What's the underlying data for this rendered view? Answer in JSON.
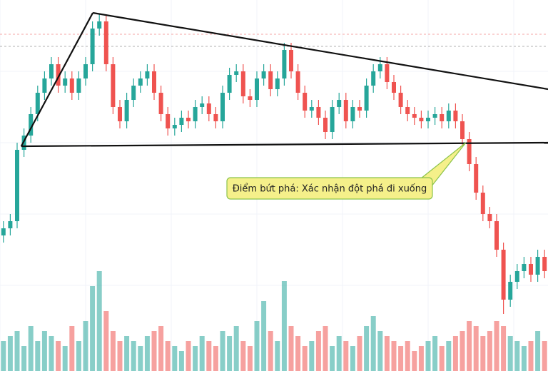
{
  "chart_data": {
    "type": "candlestick",
    "up_color": "#26a69a",
    "down_color": "#ef5350",
    "xlim": [
      -0.5,
      79.5
    ],
    "ylim": [
      0,
      104
    ],
    "volume_lim": [
      0,
      100
    ],
    "open": [
      38,
      40,
      42,
      62,
      66,
      72,
      78,
      82,
      86,
      80,
      82,
      78,
      82,
      86,
      96,
      98,
      86,
      74,
      70,
      76,
      80,
      82,
      84,
      78,
      72,
      68,
      69,
      71,
      70,
      74,
      75,
      72,
      70,
      78,
      83,
      84,
      77,
      76,
      82,
      84,
      79,
      82,
      90,
      84,
      78,
      73,
      74,
      71,
      67,
      74,
      76,
      70,
      74,
      73,
      80,
      84,
      86,
      81,
      78,
      74,
      72,
      71,
      70,
      71,
      72,
      70,
      73,
      70,
      65,
      58,
      50,
      44,
      42,
      34,
      20,
      25,
      28,
      30,
      27,
      32
    ],
    "high": [
      42,
      44,
      64,
      68,
      74,
      80,
      84,
      88,
      88,
      84,
      84,
      84,
      88,
      98,
      100,
      100,
      88,
      76,
      78,
      82,
      84,
      86,
      86,
      80,
      74,
      71,
      73,
      73,
      76,
      77,
      77,
      74,
      80,
      85,
      86,
      86,
      79,
      84,
      86,
      86,
      84,
      92,
      92,
      86,
      80,
      76,
      76,
      73,
      76,
      78,
      78,
      76,
      76,
      82,
      86,
      88,
      88,
      83,
      80,
      76,
      74,
      73,
      73,
      74,
      74,
      75,
      75,
      72,
      67,
      60,
      52,
      46,
      44,
      36,
      27,
      30,
      32,
      32,
      34,
      34
    ],
    "low": [
      36,
      38,
      40,
      60,
      64,
      70,
      76,
      80,
      78,
      78,
      76,
      76,
      80,
      84,
      94,
      84,
      72,
      68,
      68,
      74,
      78,
      80,
      76,
      70,
      66,
      66,
      67,
      68,
      68,
      72,
      70,
      68,
      68,
      76,
      81,
      75,
      74,
      74,
      80,
      77,
      77,
      80,
      82,
      76,
      71,
      71,
      69,
      65,
      65,
      72,
      68,
      68,
      71,
      71,
      78,
      82,
      79,
      76,
      72,
      70,
      69,
      68,
      68,
      69,
      68,
      68,
      68,
      63,
      56,
      48,
      42,
      40,
      32,
      16,
      18,
      23,
      26,
      25,
      25,
      26
    ],
    "close": [
      40,
      42,
      62,
      66,
      72,
      78,
      82,
      86,
      80,
      82,
      78,
      82,
      86,
      96,
      98,
      86,
      74,
      70,
      76,
      80,
      82,
      84,
      78,
      72,
      68,
      69,
      71,
      70,
      74,
      75,
      72,
      70,
      78,
      83,
      84,
      77,
      76,
      82,
      84,
      79,
      82,
      90,
      84,
      78,
      73,
      74,
      71,
      67,
      74,
      76,
      70,
      74,
      73,
      80,
      84,
      86,
      81,
      78,
      74,
      72,
      71,
      70,
      71,
      72,
      70,
      73,
      70,
      65,
      58,
      50,
      44,
      42,
      34,
      20,
      25,
      28,
      30,
      27,
      32,
      28
    ],
    "volume": [
      30,
      35,
      40,
      25,
      45,
      30,
      40,
      35,
      30,
      25,
      45,
      30,
      50,
      85,
      100,
      60,
      40,
      30,
      35,
      30,
      25,
      35,
      40,
      45,
      30,
      25,
      20,
      30,
      25,
      35,
      30,
      25,
      40,
      35,
      45,
      30,
      25,
      50,
      70,
      40,
      30,
      90,
      45,
      35,
      25,
      30,
      40,
      45,
      25,
      35,
      30,
      25,
      35,
      45,
      55,
      40,
      35,
      30,
      25,
      30,
      20,
      25,
      30,
      35,
      25,
      30,
      35,
      40,
      50,
      45,
      35,
      40,
      50,
      45,
      35,
      30,
      25,
      30,
      40,
      30
    ],
    "levels": [
      {
        "value": 94.4,
        "color": "#f4a6a6"
      },
      {
        "value": 91,
        "color": "#b0b0b0"
      }
    ],
    "trendlines": [
      {
        "points": [
          [
            2.6,
            63
          ],
          [
            13.05,
            100.4
          ]
        ]
      },
      {
        "points": [
          [
            13.05,
            100.4
          ],
          [
            79.5,
            79
          ]
        ]
      },
      {
        "points": [
          [
            2.6,
            63
          ],
          [
            79.5,
            64
          ]
        ]
      }
    ],
    "annotation": {
      "text": "Điểm bứt phá: Xác nhận đột phá đi xuống",
      "point": [
        67.5,
        64
      ]
    }
  }
}
